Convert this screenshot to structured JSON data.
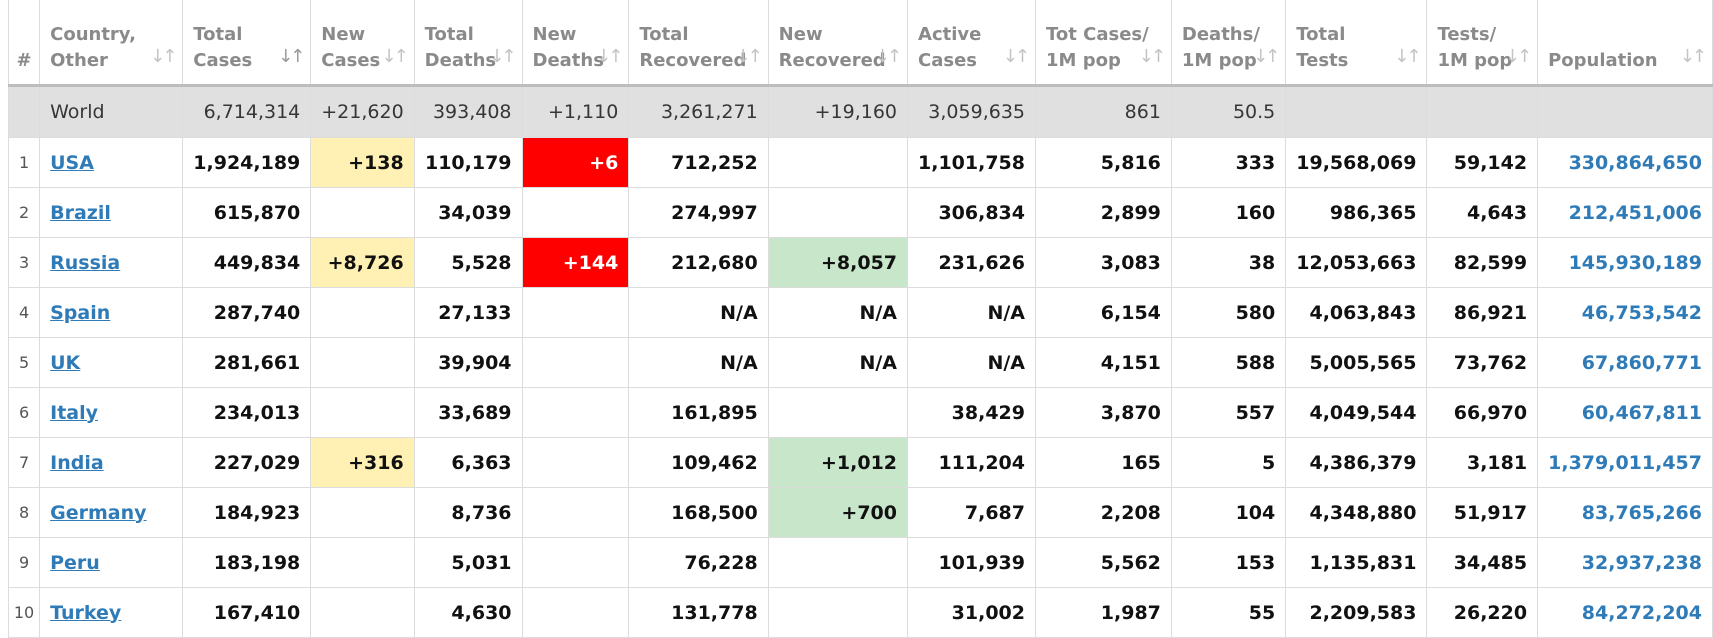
{
  "headers": [
    {
      "l1": "#",
      "l2": "",
      "sort": false
    },
    {
      "l1": "Country,",
      "l2": "Other",
      "sort": true
    },
    {
      "l1": "Total",
      "l2": "Cases",
      "sort": true,
      "active": true
    },
    {
      "l1": "New",
      "l2": "Cases",
      "sort": true
    },
    {
      "l1": "Total",
      "l2": "Deaths",
      "sort": true
    },
    {
      "l1": "New",
      "l2": "Deaths",
      "sort": true
    },
    {
      "l1": "Total",
      "l2": "Recovered",
      "sort": true
    },
    {
      "l1": "New",
      "l2": "Recovered",
      "sort": true
    },
    {
      "l1": "Active",
      "l2": "Cases",
      "sort": true
    },
    {
      "l1": "Tot Cases/",
      "l2": "1M pop",
      "sort": true
    },
    {
      "l1": "Deaths/",
      "l2": "1M pop",
      "sort": true
    },
    {
      "l1": "Total",
      "l2": "Tests",
      "sort": true
    },
    {
      "l1": "Tests/",
      "l2": "1M pop",
      "sort": true
    },
    {
      "l1": "",
      "l2": "Population",
      "sort": true
    }
  ],
  "world": {
    "name": "World",
    "total_cases": "6,714,314",
    "new_cases": "+21,620",
    "total_deaths": "393,408",
    "new_deaths": "+1,110",
    "total_recovered": "3,261,271",
    "new_recovered": "+19,160",
    "active_cases": "3,059,635",
    "cases_per_1m": "861",
    "deaths_per_1m": "50.5",
    "total_tests": "",
    "tests_per_1m": "",
    "population": ""
  },
  "rows": [
    {
      "idx": "1",
      "name": "USA",
      "total_cases": "1,924,189",
      "new_cases": "+138",
      "total_deaths": "110,179",
      "new_deaths": "+6",
      "total_recovered": "712,252",
      "new_recovered": "",
      "active_cases": "1,101,758",
      "cases_per_1m": "5,816",
      "deaths_per_1m": "333",
      "total_tests": "19,568,069",
      "tests_per_1m": "59,142",
      "population": "330,864,650"
    },
    {
      "idx": "2",
      "name": "Brazil",
      "total_cases": "615,870",
      "new_cases": "",
      "total_deaths": "34,039",
      "new_deaths": "",
      "total_recovered": "274,997",
      "new_recovered": "",
      "active_cases": "306,834",
      "cases_per_1m": "2,899",
      "deaths_per_1m": "160",
      "total_tests": "986,365",
      "tests_per_1m": "4,643",
      "population": "212,451,006"
    },
    {
      "idx": "3",
      "name": "Russia",
      "total_cases": "449,834",
      "new_cases": "+8,726",
      "total_deaths": "5,528",
      "new_deaths": "+144",
      "total_recovered": "212,680",
      "new_recovered": "+8,057",
      "active_cases": "231,626",
      "cases_per_1m": "3,083",
      "deaths_per_1m": "38",
      "total_tests": "12,053,663",
      "tests_per_1m": "82,599",
      "population": "145,930,189"
    },
    {
      "idx": "4",
      "name": "Spain",
      "total_cases": "287,740",
      "new_cases": "",
      "total_deaths": "27,133",
      "new_deaths": "",
      "total_recovered": "N/A",
      "new_recovered": "N/A",
      "active_cases": "N/A",
      "cases_per_1m": "6,154",
      "deaths_per_1m": "580",
      "total_tests": "4,063,843",
      "tests_per_1m": "86,921",
      "population": "46,753,542"
    },
    {
      "idx": "5",
      "name": "UK",
      "total_cases": "281,661",
      "new_cases": "",
      "total_deaths": "39,904",
      "new_deaths": "",
      "total_recovered": "N/A",
      "new_recovered": "N/A",
      "active_cases": "N/A",
      "cases_per_1m": "4,151",
      "deaths_per_1m": "588",
      "total_tests": "5,005,565",
      "tests_per_1m": "73,762",
      "population": "67,860,771"
    },
    {
      "idx": "6",
      "name": "Italy",
      "total_cases": "234,013",
      "new_cases": "",
      "total_deaths": "33,689",
      "new_deaths": "",
      "total_recovered": "161,895",
      "new_recovered": "",
      "active_cases": "38,429",
      "cases_per_1m": "3,870",
      "deaths_per_1m": "557",
      "total_tests": "4,049,544",
      "tests_per_1m": "66,970",
      "population": "60,467,811"
    },
    {
      "idx": "7",
      "name": "India",
      "total_cases": "227,029",
      "new_cases": "+316",
      "total_deaths": "6,363",
      "new_deaths": "",
      "total_recovered": "109,462",
      "new_recovered": "+1,012",
      "active_cases": "111,204",
      "cases_per_1m": "165",
      "deaths_per_1m": "5",
      "total_tests": "4,386,379",
      "tests_per_1m": "3,181",
      "population": "1,379,011,457"
    },
    {
      "idx": "8",
      "name": "Germany",
      "total_cases": "184,923",
      "new_cases": "",
      "total_deaths": "8,736",
      "new_deaths": "",
      "total_recovered": "168,500",
      "new_recovered": "+700",
      "active_cases": "7,687",
      "cases_per_1m": "2,208",
      "deaths_per_1m": "104",
      "total_tests": "4,348,880",
      "tests_per_1m": "51,917",
      "population": "83,765,266"
    },
    {
      "idx": "9",
      "name": "Peru",
      "total_cases": "183,198",
      "new_cases": "",
      "total_deaths": "5,031",
      "new_deaths": "",
      "total_recovered": "76,228",
      "new_recovered": "",
      "active_cases": "101,939",
      "cases_per_1m": "5,562",
      "deaths_per_1m": "153",
      "total_tests": "1,135,831",
      "tests_per_1m": "34,485",
      "population": "32,937,238"
    },
    {
      "idx": "10",
      "name": "Turkey",
      "total_cases": "167,410",
      "new_cases": "",
      "total_deaths": "4,630",
      "new_deaths": "",
      "total_recovered": "131,778",
      "new_recovered": "",
      "active_cases": "31,002",
      "cases_per_1m": "1,987",
      "deaths_per_1m": "55",
      "total_tests": "2,209,583",
      "tests_per_1m": "26,220",
      "population": "84,272,204"
    }
  ],
  "icons": {
    "sort": "sort-arrows-icon"
  },
  "colors": {
    "new_cases_bg": "#fff0b3",
    "new_deaths_bg": "#ff0000",
    "new_recovered_bg": "#c8e6c9",
    "link": "#2f7bb8",
    "world_row_bg": "#e0e0e0"
  }
}
